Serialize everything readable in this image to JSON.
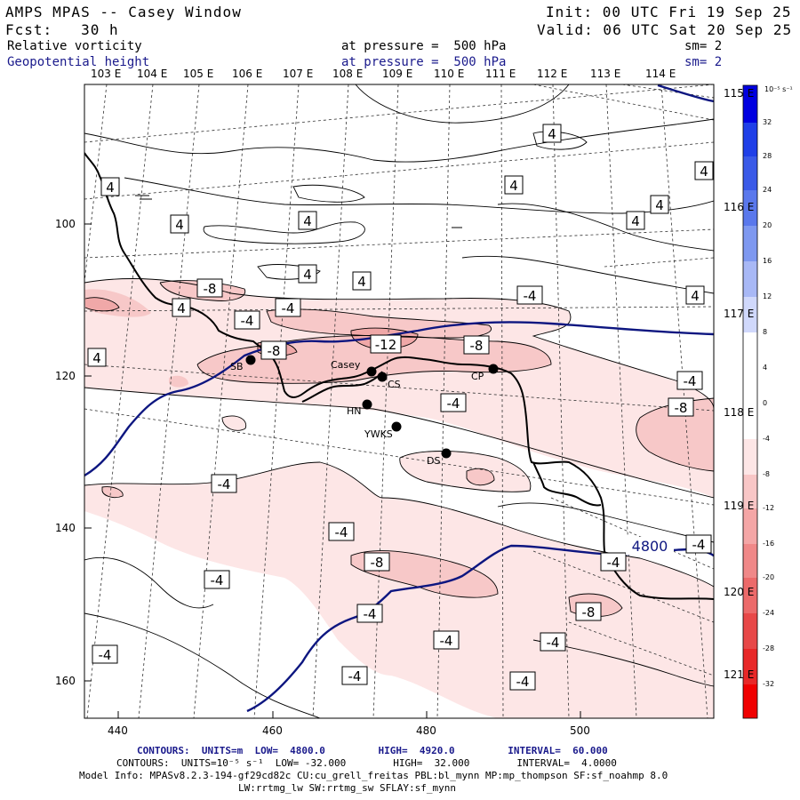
{
  "header": {
    "model": "AMPS MPAS -- Casey Window",
    "init": "Init: 00 UTC Fri 19 Sep 25",
    "fcst": "Fcst:   30 h",
    "valid": "Valid: 06 UTC Sat 20 Sep 25",
    "field1_name": "Relative vorticity",
    "field1_level": "at pressure =  500 hPa",
    "field1_sm": "sm= 2",
    "field2_name": "Geopotential height",
    "field2_level": "at pressure =  500 hPa",
    "field2_sm": "sm= 2"
  },
  "map": {
    "lon_labels_top": [
      "103 E",
      "104 E",
      "105 E",
      "106 E",
      "107 E",
      "108 E",
      "109 E",
      "110 E",
      "111 E",
      "112 E",
      "113 E",
      "114 E"
    ],
    "lat_labels_right": [
      "115 E",
      "116 E",
      "117 E",
      "118 E",
      "119 E",
      "120 E",
      "121 E"
    ],
    "y_axis_ticks": [
      "100",
      "120",
      "140",
      "160"
    ],
    "x_axis_ticks": [
      "440",
      "460",
      "480",
      "500"
    ],
    "stations": [
      {
        "name": "SB"
      },
      {
        "name": "Casey"
      },
      {
        "name": "CS"
      },
      {
        "name": "HN"
      },
      {
        "name": "YWKS"
      },
      {
        "name": "CP"
      },
      {
        "name": "DS"
      }
    ],
    "contour_labels": [
      "-4",
      "4",
      "-8",
      "-12",
      "4800"
    ],
    "height_contour_value": "4800"
  },
  "colorbar": {
    "unit": "10⁻⁵ s⁻¹",
    "ticks": [
      "32",
      "28",
      "24",
      "20",
      "16",
      "12",
      "8",
      "4",
      "0",
      "-4",
      "-8",
      "-12",
      "-16",
      "-20",
      "-24",
      "-28",
      "-32"
    ],
    "colors": [
      "#0000e0",
      "#1f3fe8",
      "#3a5ae8",
      "#5a78ec",
      "#7e98f0",
      "#a8b8f6",
      "#d0d8fb",
      "#ffffff",
      "#ffffff",
      "#fde6e6",
      "#f8c6c6",
      "#f4a6a6",
      "#f08888",
      "#ec6a6a",
      "#e84848",
      "#e82828",
      "#f00000"
    ],
    "neg_fill_light": "#fde6e6",
    "neg_fill_mid": "#f7c8c8",
    "neg_fill_dark": "#f0a8a8",
    "height_line_color": "#0d1680"
  },
  "footer": {
    "contours_height": "CONTOURS:  UNITS=m  LOW=  4800.0         HIGH=  4920.0         INTERVAL=  60.000",
    "contours_vort": "CONTOURS:  UNITS=10⁻⁵ s⁻¹  LOW= -32.000        HIGH=  32.000        INTERVAL=  4.0000",
    "model_info": "Model Info: MPASv8.2.3-194-gf29cd82c CU:cu_grell_freitas PBL:bl_mynn MP:mp_thompson SF:sf_noahmp 8.0",
    "model_info2": "LW:rrtmg_lw SW:rrtmg_sw SFLAY:sf_mynn"
  }
}
